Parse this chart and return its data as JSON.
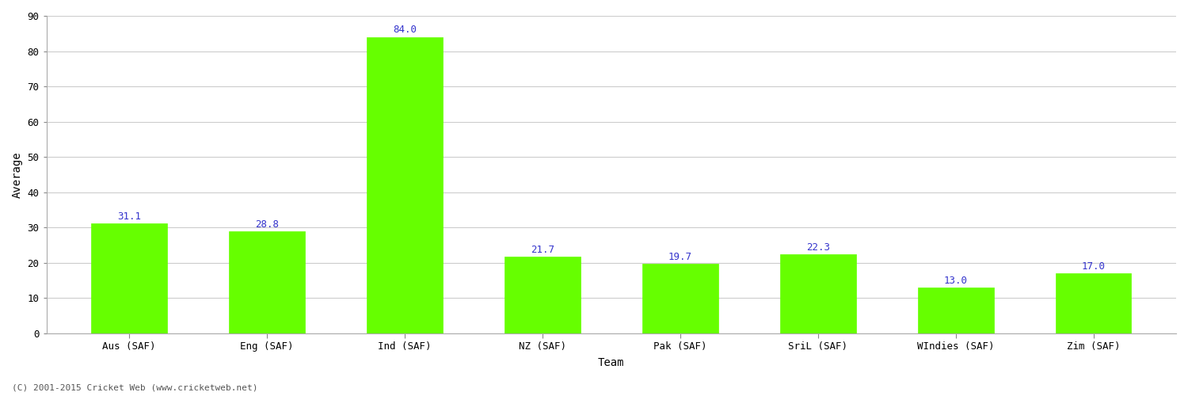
{
  "categories": [
    "Aus (SAF)",
    "Eng (SAF)",
    "Ind (SAF)",
    "NZ (SAF)",
    "Pak (SAF)",
    "SriL (SAF)",
    "WIndies (SAF)",
    "Zim (SAF)"
  ],
  "values": [
    31.1,
    28.8,
    84.0,
    21.7,
    19.7,
    22.3,
    13.0,
    17.0
  ],
  "bar_color": "#66ff00",
  "bar_edge_color": "#66ff00",
  "label_color": "#3333cc",
  "ylabel": "Average",
  "xlabel": "Team",
  "ylim": [
    0,
    90
  ],
  "yticks": [
    0,
    10,
    20,
    30,
    40,
    50,
    60,
    70,
    80,
    90
  ],
  "grid_color": "#cccccc",
  "bg_color": "#ffffff",
  "footer": "(C) 2001-2015 Cricket Web (www.cricketweb.net)",
  "label_fontsize": 9,
  "axis_label_fontsize": 10,
  "tick_fontsize": 9,
  "footer_fontsize": 8,
  "bar_width": 0.55
}
